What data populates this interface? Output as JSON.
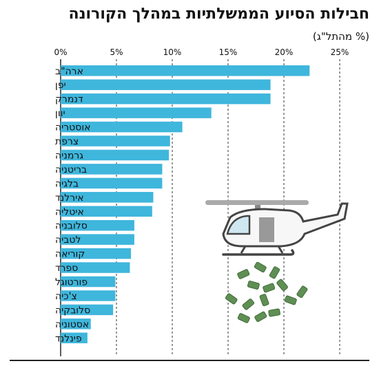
{
  "chart_data": {
    "type": "bar",
    "orientation": "horizontal",
    "title": "חבילות הסיוע הממשלתיות במהלך הקורונה",
    "subtitle": "(% מהתל\"ג)",
    "categories": [
      "ארה\"ב",
      "יפן",
      "דנמרק",
      "יוון",
      "אוסטריה",
      "צרפת",
      "גרמניה",
      "בריטניה",
      "בלגיה",
      "אירלנד",
      "איטליה",
      "סלובניה",
      "לטביה",
      "קוריאה",
      "ספרד",
      "פורטוגל",
      "צ'כיה",
      "סלובקיה",
      "אסטוניה",
      "פינלנד"
    ],
    "values": [
      22.3,
      18.8,
      18.8,
      13.5,
      10.9,
      9.8,
      9.7,
      9.1,
      9.1,
      8.3,
      8.2,
      6.6,
      6.6,
      6.3,
      6.2,
      4.9,
      4.9,
      4.7,
      2.7,
      2.4
    ],
    "tick_labels": [
      "0%",
      "5%",
      "10%",
      "15%",
      "20%",
      "25%"
    ],
    "ticks": [
      0,
      5,
      10,
      15,
      20,
      25
    ],
    "xlim": [
      0,
      27
    ],
    "grid": "dashed vertical lines",
    "bar_color": "#3fb6dc"
  }
}
